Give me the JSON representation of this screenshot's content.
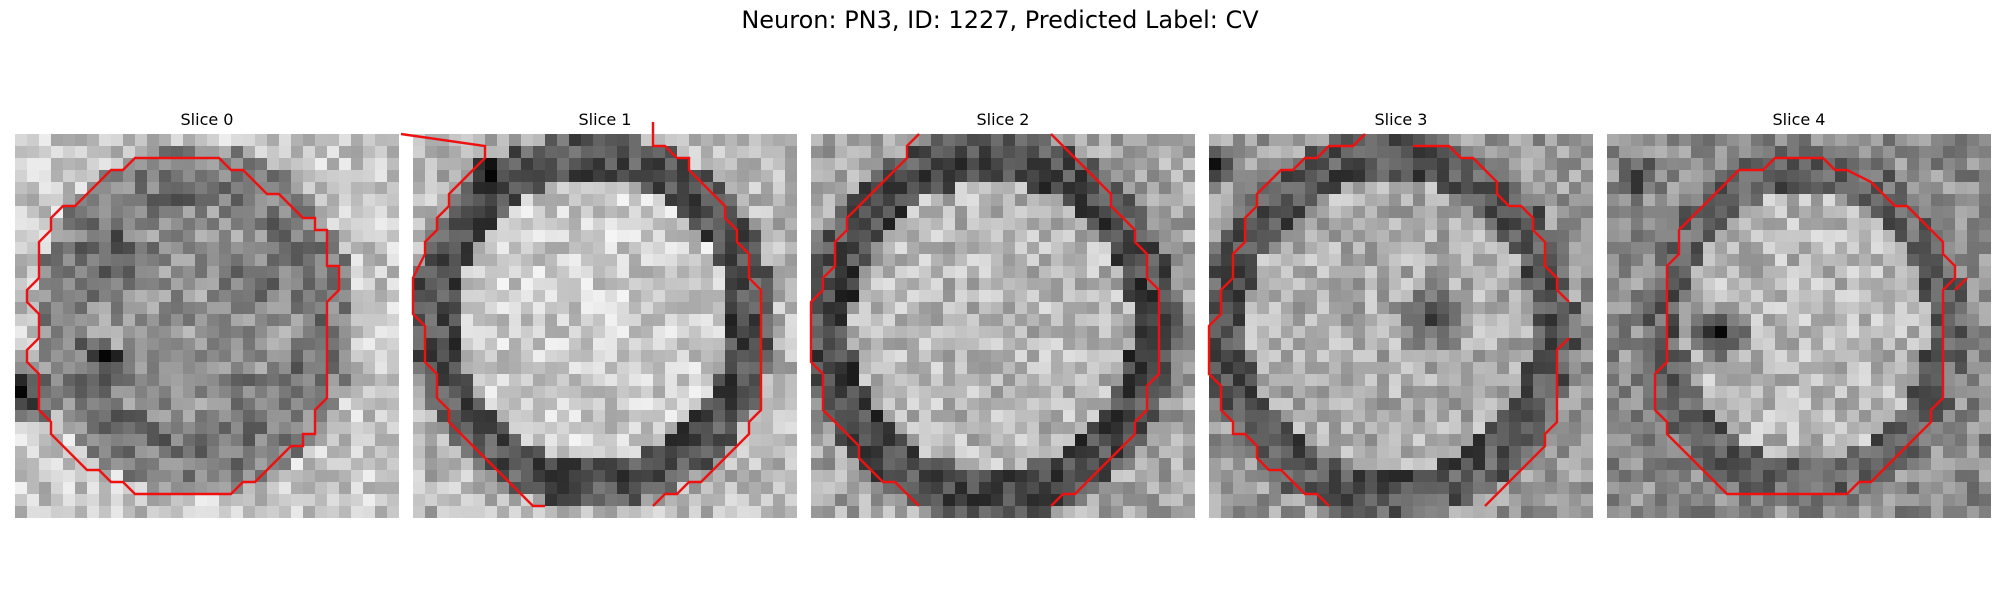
{
  "figure": {
    "title": "Neuron: PN3, ID: 1227, Predicted Label: CV"
  },
  "panels": [
    {
      "title": "Slice 0",
      "contour": [
        [
          12,
          2
        ],
        [
          17,
          2
        ],
        [
          18,
          3
        ],
        [
          19,
          3
        ],
        [
          21,
          5
        ],
        [
          22,
          5
        ],
        [
          24,
          7
        ],
        [
          25,
          7
        ],
        [
          25,
          8
        ],
        [
          26,
          8
        ],
        [
          26,
          11
        ],
        [
          27,
          11
        ],
        [
          27,
          13
        ],
        [
          26,
          14
        ],
        [
          26,
          22
        ],
        [
          25,
          23
        ],
        [
          25,
          25
        ],
        [
          24,
          25
        ],
        [
          24,
          26
        ],
        [
          23,
          26
        ],
        [
          22,
          27
        ],
        [
          21,
          28
        ],
        [
          20,
          29
        ],
        [
          19,
          29
        ],
        [
          18,
          30
        ],
        [
          10,
          30
        ],
        [
          9,
          29
        ],
        [
          8,
          29
        ],
        [
          7,
          28
        ],
        [
          6,
          28
        ],
        [
          5,
          27
        ],
        [
          4,
          26
        ],
        [
          3,
          25
        ],
        [
          3,
          24
        ],
        [
          2,
          23
        ],
        [
          2,
          20
        ],
        [
          1,
          19
        ],
        [
          1,
          18
        ],
        [
          2,
          17
        ],
        [
          2,
          15
        ],
        [
          1,
          14
        ],
        [
          1,
          13
        ],
        [
          2,
          12
        ],
        [
          2,
          9
        ],
        [
          3,
          8
        ],
        [
          3,
          7
        ],
        [
          4,
          6
        ],
        [
          5,
          6
        ],
        [
          6,
          5
        ],
        [
          7,
          4
        ],
        [
          8,
          3
        ],
        [
          9,
          3
        ],
        [
          10,
          2
        ],
        [
          12,
          2
        ]
      ],
      "closed": true
    },
    {
      "title": "Slice 1",
      "contour_segments": [
        [
          [
            -1,
            0
          ],
          [
            6,
            1
          ],
          [
            6,
            2
          ],
          [
            5,
            3
          ],
          [
            4,
            4
          ],
          [
            3,
            5
          ],
          [
            3,
            6
          ],
          [
            2,
            7
          ],
          [
            2,
            8
          ],
          [
            1,
            9
          ],
          [
            1,
            10
          ],
          [
            0,
            12
          ],
          [
            0,
            15
          ],
          [
            1,
            16
          ],
          [
            1,
            19
          ],
          [
            2,
            20
          ],
          [
            2,
            22
          ],
          [
            3,
            23
          ],
          [
            3,
            24
          ],
          [
            4,
            25
          ],
          [
            5,
            26
          ],
          [
            6,
            27
          ],
          [
            7,
            28
          ],
          [
            8,
            29
          ],
          [
            9,
            30
          ],
          [
            10,
            31
          ],
          [
            11,
            31
          ]
        ],
        [
          [
            20,
            -1
          ],
          [
            20,
            1
          ],
          [
            21,
            1
          ],
          [
            22,
            2
          ],
          [
            23,
            2
          ],
          [
            23,
            3
          ],
          [
            24,
            4
          ],
          [
            25,
            5
          ],
          [
            26,
            6
          ],
          [
            26,
            7
          ],
          [
            27,
            8
          ],
          [
            27,
            9
          ],
          [
            28,
            10
          ],
          [
            28,
            12
          ],
          [
            29,
            13
          ],
          [
            29,
            23
          ],
          [
            28,
            24
          ],
          [
            28,
            25
          ],
          [
            27,
            26
          ],
          [
            26,
            27
          ],
          [
            25,
            28
          ],
          [
            24,
            29
          ],
          [
            23,
            29
          ],
          [
            22,
            30
          ],
          [
            21,
            30
          ],
          [
            20,
            31
          ]
        ]
      ]
    },
    {
      "title": "Slice 2",
      "contour_segments": [
        [
          [
            9,
            0
          ],
          [
            8,
            1
          ],
          [
            8,
            2
          ],
          [
            7,
            3
          ],
          [
            6,
            4
          ],
          [
            5,
            5
          ],
          [
            4,
            6
          ],
          [
            3,
            7
          ],
          [
            3,
            8
          ],
          [
            2,
            9
          ],
          [
            2,
            11
          ],
          [
            1,
            12
          ],
          [
            1,
            13
          ],
          [
            0,
            14
          ],
          [
            0,
            19
          ],
          [
            1,
            20
          ],
          [
            1,
            23
          ],
          [
            2,
            24
          ],
          [
            3,
            25
          ],
          [
            4,
            26
          ],
          [
            4,
            27
          ],
          [
            5,
            28
          ],
          [
            6,
            29
          ],
          [
            7,
            29
          ],
          [
            8,
            30
          ],
          [
            9,
            31
          ]
        ],
        [
          [
            20,
            0
          ],
          [
            21,
            1
          ],
          [
            22,
            2
          ],
          [
            23,
            3
          ],
          [
            24,
            4
          ],
          [
            25,
            5
          ],
          [
            25,
            6
          ],
          [
            26,
            7
          ],
          [
            27,
            8
          ],
          [
            27,
            9
          ],
          [
            28,
            10
          ],
          [
            28,
            12
          ],
          [
            29,
            13
          ],
          [
            29,
            20
          ],
          [
            28,
            21
          ],
          [
            28,
            23
          ],
          [
            27,
            24
          ],
          [
            27,
            25
          ],
          [
            26,
            26
          ],
          [
            25,
            27
          ],
          [
            24,
            28
          ],
          [
            23,
            29
          ],
          [
            22,
            30
          ],
          [
            21,
            30
          ],
          [
            20,
            31
          ]
        ]
      ]
    },
    {
      "title": "Slice 3",
      "contour_segments": [
        [
          [
            13,
            0
          ],
          [
            12,
            1
          ],
          [
            10,
            1
          ],
          [
            9,
            2
          ],
          [
            8,
            2
          ],
          [
            7,
            3
          ],
          [
            6,
            3
          ],
          [
            5,
            4
          ],
          [
            4,
            5
          ],
          [
            4,
            6
          ],
          [
            3,
            7
          ],
          [
            3,
            9
          ],
          [
            2,
            10
          ],
          [
            2,
            12
          ],
          [
            1,
            13
          ],
          [
            1,
            15
          ],
          [
            0,
            16
          ],
          [
            0,
            20
          ],
          [
            1,
            21
          ],
          [
            1,
            23
          ],
          [
            2,
            24
          ],
          [
            2,
            25
          ],
          [
            3,
            25
          ],
          [
            4,
            26
          ],
          [
            4,
            27
          ],
          [
            5,
            28
          ],
          [
            6,
            28
          ],
          [
            7,
            29
          ],
          [
            8,
            30
          ],
          [
            9,
            30
          ],
          [
            10,
            31
          ]
        ],
        [
          [
            17,
            1
          ],
          [
            20,
            1
          ],
          [
            21,
            2
          ],
          [
            22,
            2
          ],
          [
            23,
            3
          ],
          [
            24,
            4
          ],
          [
            24,
            5
          ],
          [
            25,
            6
          ],
          [
            26,
            6
          ],
          [
            27,
            7
          ],
          [
            27,
            8
          ],
          [
            28,
            9
          ],
          [
            28,
            11
          ],
          [
            29,
            12
          ],
          [
            29,
            13
          ],
          [
            30,
            14
          ]
        ],
        [
          [
            30,
            17
          ],
          [
            29,
            18
          ],
          [
            29,
            24
          ],
          [
            28,
            25
          ],
          [
            28,
            26
          ],
          [
            27,
            27
          ],
          [
            26,
            28
          ],
          [
            25,
            29
          ],
          [
            24,
            30
          ],
          [
            23,
            31
          ]
        ]
      ]
    },
    {
      "title": "Slice 4",
      "contour": [
        [
          14,
          2
        ],
        [
          18,
          2
        ],
        [
          19,
          3
        ],
        [
          20,
          3
        ],
        [
          22,
          4
        ],
        [
          23,
          5
        ],
        [
          24,
          6
        ],
        [
          25,
          6
        ],
        [
          26,
          7
        ],
        [
          27,
          8
        ],
        [
          28,
          9
        ],
        [
          28,
          10
        ],
        [
          29,
          11
        ],
        [
          29,
          12
        ],
        [
          28,
          13
        ],
        [
          28,
          22
        ],
        [
          27,
          23
        ],
        [
          27,
          24
        ],
        [
          26,
          25
        ],
        [
          25,
          26
        ],
        [
          24,
          27
        ],
        [
          23,
          28
        ],
        [
          22,
          29
        ],
        [
          21,
          29
        ],
        [
          20,
          30
        ],
        [
          10,
          30
        ],
        [
          9,
          29
        ],
        [
          8,
          28
        ],
        [
          7,
          27
        ],
        [
          6,
          26
        ],
        [
          5,
          25
        ],
        [
          5,
          24
        ],
        [
          4,
          23
        ],
        [
          4,
          20
        ],
        [
          5,
          19
        ],
        [
          5,
          11
        ],
        [
          6,
          10
        ],
        [
          6,
          8
        ],
        [
          7,
          7
        ],
        [
          8,
          6
        ],
        [
          9,
          5
        ],
        [
          10,
          4
        ],
        [
          11,
          3
        ],
        [
          13,
          3
        ],
        [
          14,
          2
        ]
      ],
      "closed": true,
      "extra_segment": [
        [
          30,
          12
        ],
        [
          29,
          13
        ]
      ]
    }
  ],
  "colors": {
    "contour": "#ee1111",
    "background": "#ffffff"
  }
}
